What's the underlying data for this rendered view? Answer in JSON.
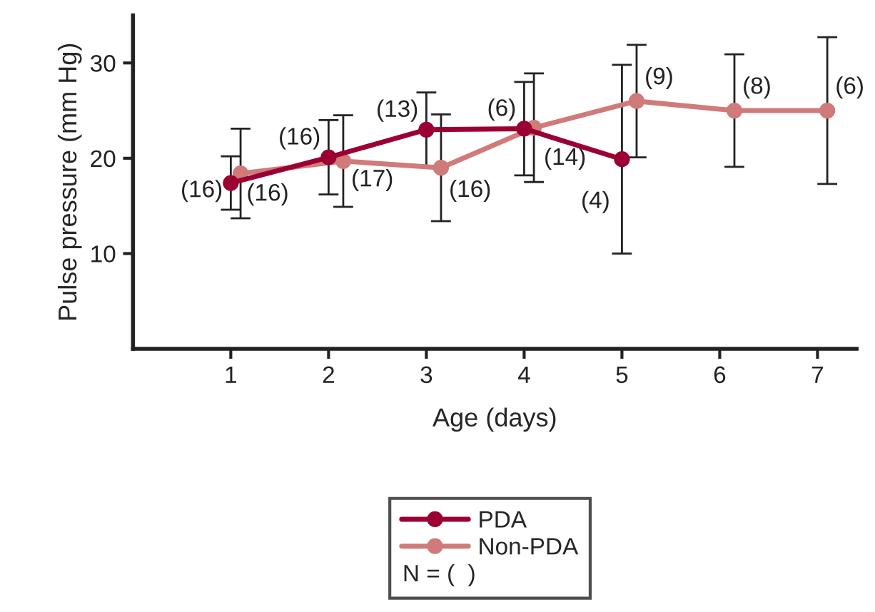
{
  "chart_data": {
    "type": "line",
    "xlabel": "Age (days)",
    "ylabel": "Pulse pressure (mm Hg)",
    "xlim": [
      0,
      7.4
    ],
    "xticks": [
      1,
      2,
      3,
      4,
      5,
      6,
      7
    ],
    "ylim": [
      0,
      35
    ],
    "yticks": [
      10,
      20,
      30
    ],
    "grid": false,
    "legend": "bottom",
    "marker": "circle",
    "line_style": "solid",
    "series": [
      {
        "name": "PDA",
        "color": "#9b0032",
        "x": [
          1,
          2,
          3,
          4,
          5
        ],
        "values": [
          17.4,
          20.1,
          23.0,
          23.1,
          19.9
        ],
        "errors": [
          2.8,
          3.9,
          3.9,
          4.9,
          9.9
        ]
      },
      {
        "name": "Non-PDA",
        "color": "#d07a7a",
        "x": [
          1.1,
          2.15,
          3.15,
          4.1,
          5.15,
          6.15,
          7.1
        ],
        "values": [
          18.4,
          19.7,
          19.0,
          23.2,
          26.0,
          25.0,
          25.0
        ],
        "errors": [
          4.7,
          4.8,
          5.6,
          5.7,
          5.9,
          5.9,
          7.7
        ]
      }
    ],
    "annotations": [
      {
        "text": "(16)",
        "x": 1,
        "y": 17.4
      },
      {
        "text": "(16)",
        "x": 2,
        "y": 20.1
      },
      {
        "text": "(13)",
        "x": 3,
        "y": 23.0
      },
      {
        "text": "(6)",
        "x": 4,
        "y": 23.1
      },
      {
        "text": "(4)",
        "x": 5,
        "y": 19.9
      },
      {
        "text": "(16)",
        "x": 1.1,
        "y": 18.4
      },
      {
        "text": "(17)",
        "x": 2.15,
        "y": 19.7
      },
      {
        "text": "(16)",
        "x": 3.15,
        "y": 19.0
      },
      {
        "text": "(14)",
        "x": 4.1,
        "y": 23.2
      },
      {
        "text": "(9)",
        "x": 5.15,
        "y": 26.0
      },
      {
        "text": "(8)",
        "x": 6.15,
        "y": 25.0
      },
      {
        "text": "(6)",
        "x": 7.1,
        "y": 25.0
      },
      "N = (  )"
    ]
  }
}
